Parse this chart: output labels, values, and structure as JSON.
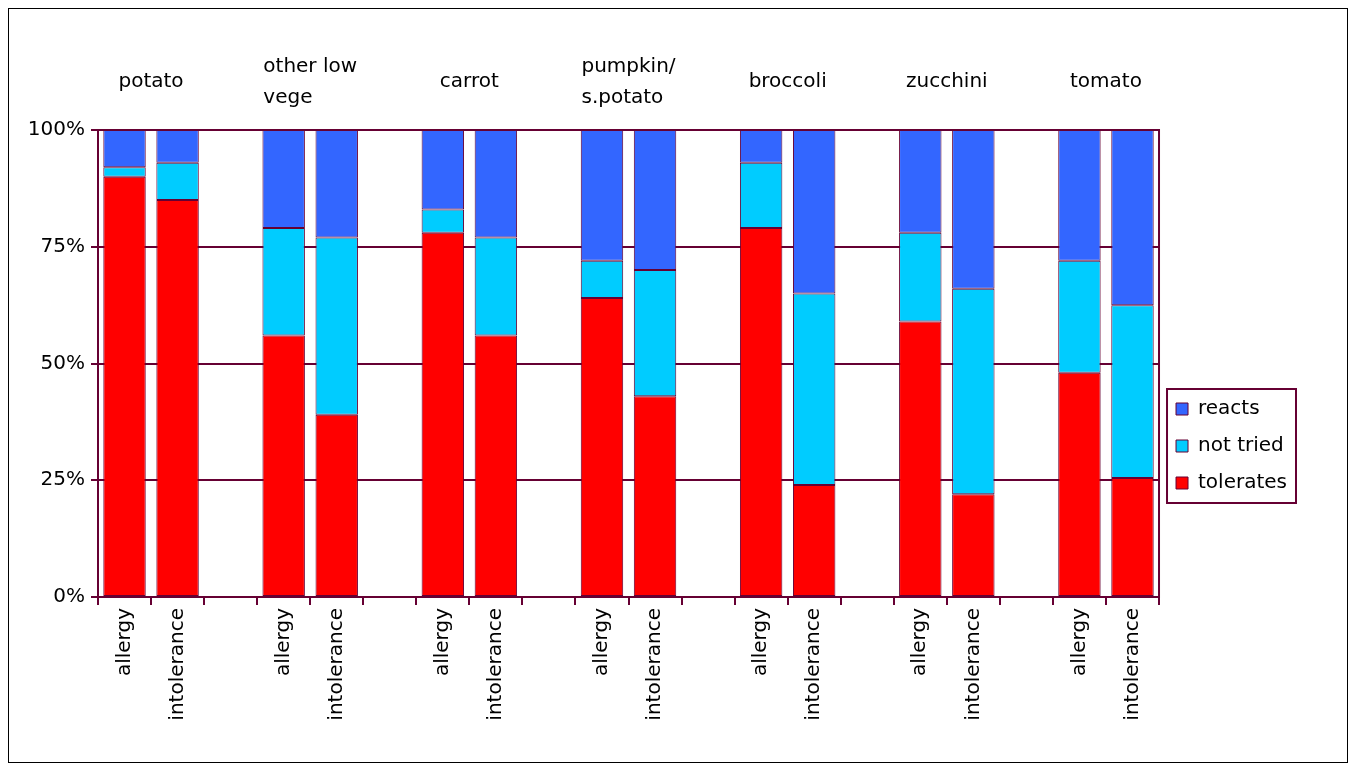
{
  "chart_data": {
    "type": "bar",
    "stacked": true,
    "categories": [
      "allergy",
      "intolerance",
      null,
      "allergy",
      "intolerance",
      null,
      "allergy",
      "intolerance",
      null,
      "allergy",
      "intolerance",
      null,
      "allergy",
      "intolerance",
      null,
      "allergy",
      "intolerance",
      null,
      "allergy",
      "intolerance"
    ],
    "series": [
      {
        "name": "tolerates",
        "color": "#ff0000",
        "values": [
          90,
          85,
          null,
          56,
          39,
          null,
          78,
          56,
          null,
          64,
          43,
          null,
          79,
          24,
          null,
          59,
          22,
          null,
          48,
          25.5
        ]
      },
      {
        "name": "not tried",
        "color": "#00ccff",
        "values": [
          2,
          8,
          null,
          23,
          38,
          null,
          5,
          21,
          null,
          8,
          27,
          null,
          14,
          41,
          null,
          19,
          44,
          null,
          24,
          37
        ]
      },
      {
        "name": "reacts",
        "color": "#3366ff",
        "values": [
          8,
          7,
          null,
          21,
          23,
          null,
          17,
          23,
          null,
          28,
          30,
          null,
          7,
          35,
          null,
          22,
          34,
          null,
          28,
          37.5
        ]
      }
    ],
    "ylim": [
      0,
      100
    ],
    "yticks": [
      {
        "value": 0,
        "label": "0%"
      },
      {
        "value": 25,
        "label": "25%"
      },
      {
        "value": 50,
        "label": "50%"
      },
      {
        "value": 75,
        "label": "75%"
      },
      {
        "value": 100,
        "label": "100%"
      }
    ],
    "grid": "y",
    "legend": "right",
    "annotations": [
      "potato",
      "other low vege",
      "carrot",
      "pumpkin/s.potato",
      "broccoli",
      "zucchini",
      "tomato"
    ]
  }
}
